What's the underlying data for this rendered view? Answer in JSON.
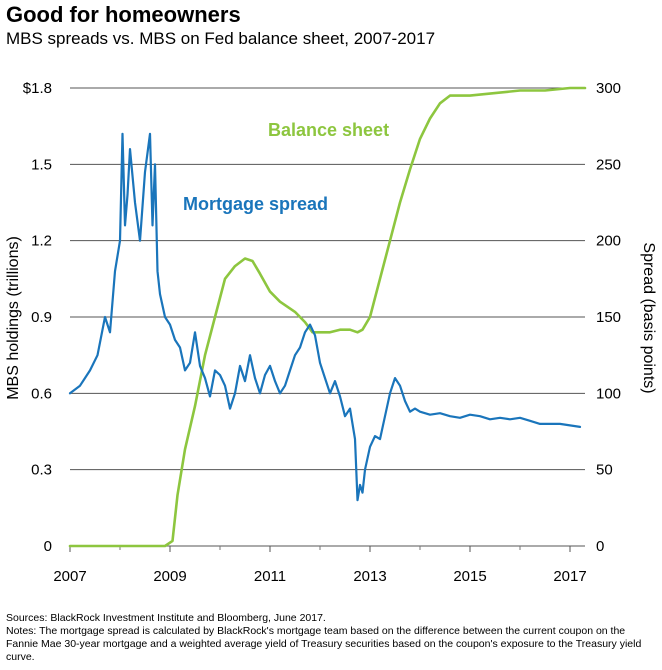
{
  "title": "Good for homeowners",
  "subtitle": "MBS spreads vs. MBS on Fed balance sheet, 2007-2017",
  "sources": "Sources: BlackRock Investment Institute and Bloomberg, June 2017.",
  "notes": "Notes: The mortgage spread is calculated by BlackRock's mortgage team based on the difference between the current coupon on the Fannie Mae 30-year mortgage and a weighted average yield of Treasury securities based on the coupon's exposure to the Treasury yield curve.",
  "colors": {
    "balance": "#8dc63f",
    "spread": "#1a75bb",
    "grid": "#555555"
  },
  "chart_data": {
    "type": "line",
    "xlabel": "",
    "ylabel_left": "MBS holdings (trillions)",
    "ylabel_right": "Spread (basis points)",
    "xlim": [
      2007,
      2017.3
    ],
    "ylim_left": [
      0,
      1.8
    ],
    "ylim_right": [
      0,
      300
    ],
    "grid": true,
    "x_ticks": [
      "2007",
      "2009",
      "2011",
      "2013",
      "2015",
      "2017"
    ],
    "x_tick_values": [
      2007,
      2009,
      2011,
      2013,
      2015,
      2017
    ],
    "y_left_ticks": [
      "0",
      "0.3",
      "0.6",
      "0.9",
      "1.2",
      "1.5",
      "$1.8"
    ],
    "y_left_tick_values": [
      0,
      0.3,
      0.6,
      0.9,
      1.2,
      1.5,
      1.8
    ],
    "y_right_ticks": [
      "0",
      "50",
      "100",
      "150",
      "200",
      "250",
      "300"
    ],
    "y_right_tick_values": [
      0,
      50,
      100,
      150,
      200,
      250,
      300
    ],
    "series": [
      {
        "name": "Balance sheet",
        "axis": "left",
        "color": "#8dc63f",
        "x": [
          2007.0,
          2008.9,
          2009.05,
          2009.15,
          2009.3,
          2009.5,
          2009.7,
          2009.9,
          2010.1,
          2010.3,
          2010.5,
          2010.65,
          2010.8,
          2011.0,
          2011.2,
          2011.5,
          2011.7,
          2011.85,
          2012.0,
          2012.2,
          2012.4,
          2012.6,
          2012.75,
          2012.85,
          2013.0,
          2013.2,
          2013.4,
          2013.6,
          2013.8,
          2014.0,
          2014.2,
          2014.4,
          2014.6,
          2014.8,
          2015.0,
          2015.5,
          2016.0,
          2016.5,
          2017.0,
          2017.3
        ],
        "values": [
          0,
          0,
          0.02,
          0.2,
          0.38,
          0.55,
          0.75,
          0.9,
          1.05,
          1.1,
          1.13,
          1.12,
          1.07,
          1.0,
          0.96,
          0.92,
          0.88,
          0.84,
          0.84,
          0.84,
          0.85,
          0.85,
          0.84,
          0.85,
          0.9,
          1.05,
          1.2,
          1.35,
          1.48,
          1.6,
          1.68,
          1.74,
          1.77,
          1.77,
          1.77,
          1.78,
          1.79,
          1.79,
          1.8,
          1.8
        ]
      },
      {
        "name": "Mortgage spread",
        "axis": "right",
        "color": "#1a75bb",
        "x": [
          2007.0,
          2007.2,
          2007.4,
          2007.55,
          2007.7,
          2007.8,
          2007.9,
          2008.0,
          2008.05,
          2008.1,
          2008.15,
          2008.2,
          2008.3,
          2008.4,
          2008.5,
          2008.6,
          2008.65,
          2008.7,
          2008.75,
          2008.8,
          2008.9,
          2009.0,
          2009.1,
          2009.2,
          2009.3,
          2009.4,
          2009.5,
          2009.6,
          2009.7,
          2009.8,
          2009.9,
          2010.0,
          2010.1,
          2010.2,
          2010.3,
          2010.4,
          2010.5,
          2010.6,
          2010.7,
          2010.8,
          2010.9,
          2011.0,
          2011.1,
          2011.2,
          2011.3,
          2011.4,
          2011.5,
          2011.6,
          2011.7,
          2011.8,
          2011.9,
          2012.0,
          2012.1,
          2012.2,
          2012.3,
          2012.4,
          2012.5,
          2012.6,
          2012.7,
          2012.75,
          2012.8,
          2012.85,
          2012.9,
          2013.0,
          2013.1,
          2013.2,
          2013.3,
          2013.4,
          2013.5,
          2013.6,
          2013.7,
          2013.8,
          2013.9,
          2014.0,
          2014.2,
          2014.4,
          2014.6,
          2014.8,
          2015.0,
          2015.2,
          2015.4,
          2015.6,
          2015.8,
          2016.0,
          2016.2,
          2016.4,
          2016.6,
          2016.8,
          2017.0,
          2017.2
        ],
        "values": [
          100,
          105,
          115,
          125,
          150,
          140,
          180,
          200,
          270,
          210,
          230,
          260,
          225,
          200,
          245,
          270,
          210,
          250,
          180,
          165,
          150,
          145,
          135,
          130,
          115,
          120,
          140,
          118,
          110,
          98,
          115,
          112,
          105,
          90,
          100,
          118,
          108,
          125,
          110,
          100,
          112,
          118,
          108,
          100,
          105,
          115,
          125,
          130,
          140,
          145,
          138,
          120,
          110,
          100,
          108,
          98,
          85,
          90,
          70,
          30,
          40,
          35,
          50,
          65,
          72,
          70,
          85,
          100,
          110,
          105,
          95,
          88,
          90,
          88,
          86,
          87,
          85,
          84,
          86,
          85,
          83,
          84,
          83,
          84,
          82,
          80,
          80,
          80,
          79,
          78
        ]
      }
    ],
    "annotations": [
      "Balance sheet",
      "Mortgage spread"
    ]
  }
}
